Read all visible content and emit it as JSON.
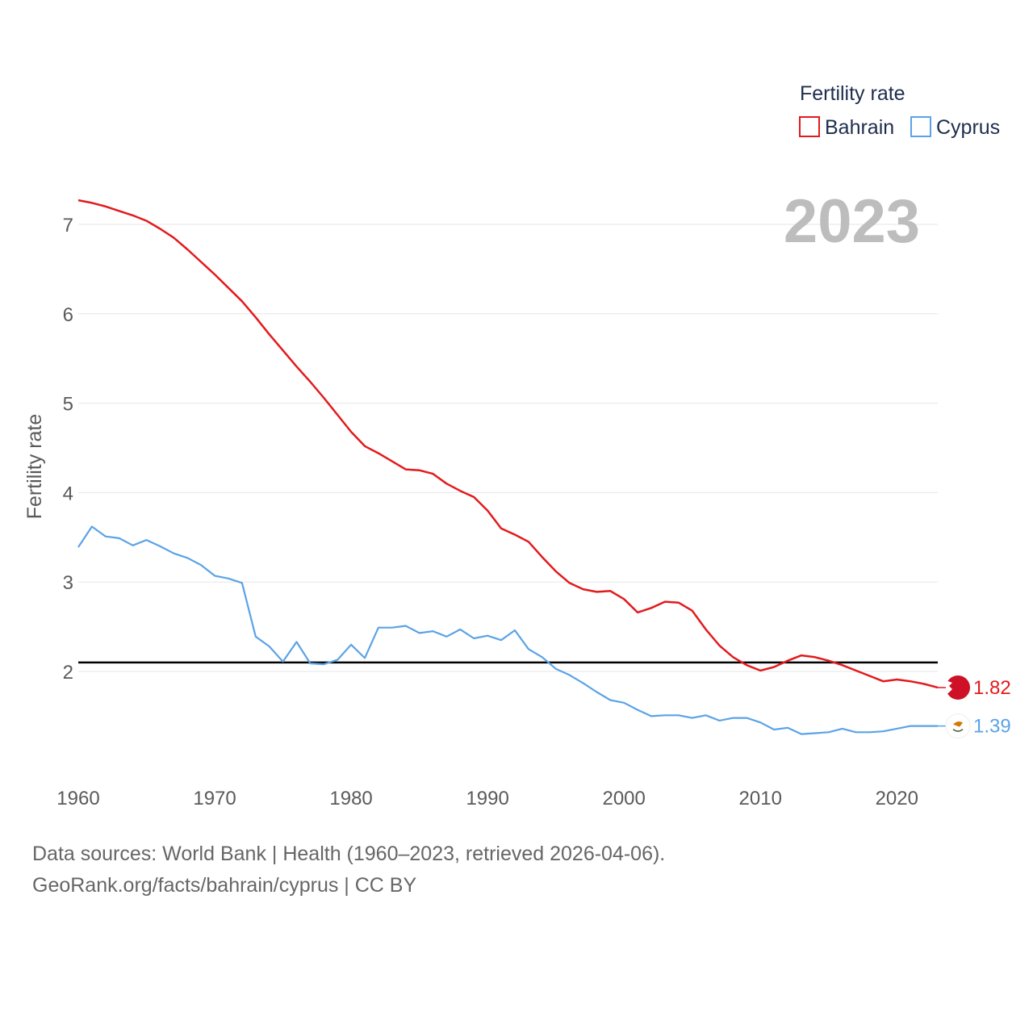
{
  "chart_data": {
    "type": "line",
    "title": "",
    "ylabel": "Fertility rate",
    "xlabel": "",
    "legend_title": "Fertility rate",
    "legend_position": "top-right",
    "current_year": "2023",
    "xlim": [
      1960,
      2023
    ],
    "ylim": [
      1,
      7.3
    ],
    "x_ticks": [
      1960,
      1970,
      1980,
      1990,
      2000,
      2010,
      2020
    ],
    "y_ticks": [
      2,
      3,
      4,
      5,
      6,
      7
    ],
    "reference_line": {
      "y": 2.1,
      "color": "#000000"
    },
    "x": [
      1960,
      1961,
      1962,
      1963,
      1964,
      1965,
      1966,
      1967,
      1968,
      1969,
      1970,
      1971,
      1972,
      1973,
      1974,
      1975,
      1976,
      1977,
      1978,
      1979,
      1980,
      1981,
      1982,
      1983,
      1984,
      1985,
      1986,
      1987,
      1988,
      1989,
      1990,
      1991,
      1992,
      1993,
      1994,
      1995,
      1996,
      1997,
      1998,
      1999,
      2000,
      2001,
      2002,
      2003,
      2004,
      2005,
      2006,
      2007,
      2008,
      2009,
      2010,
      2011,
      2012,
      2013,
      2014,
      2015,
      2016,
      2017,
      2018,
      2019,
      2020,
      2021,
      2022,
      2023
    ],
    "series": [
      {
        "name": "Bahrain",
        "color": "#e31a1c",
        "end_label": "1.82",
        "values": [
          7.27,
          7.24,
          7.2,
          7.15,
          7.1,
          7.04,
          6.95,
          6.85,
          6.72,
          6.58,
          6.44,
          6.29,
          6.14,
          5.96,
          5.77,
          5.59,
          5.41,
          5.24,
          5.06,
          4.87,
          4.68,
          4.52,
          4.44,
          4.35,
          4.26,
          4.25,
          4.21,
          4.1,
          4.02,
          3.95,
          3.8,
          3.6,
          3.53,
          3.45,
          3.28,
          3.12,
          2.99,
          2.92,
          2.89,
          2.9,
          2.81,
          2.66,
          2.71,
          2.78,
          2.77,
          2.68,
          2.47,
          2.29,
          2.16,
          2.07,
          2.01,
          2.05,
          2.12,
          2.18,
          2.16,
          2.12,
          2.07,
          2.01,
          1.95,
          1.89,
          1.91,
          1.89,
          1.86,
          1.82
        ]
      },
      {
        "name": "Cyprus",
        "color": "#5ba3e6",
        "end_label": "1.39",
        "values": [
          3.39,
          3.62,
          3.51,
          3.49,
          3.41,
          3.47,
          3.4,
          3.32,
          3.27,
          3.19,
          3.07,
          3.04,
          2.99,
          2.39,
          2.28,
          2.11,
          2.33,
          2.09,
          2.08,
          2.13,
          2.3,
          2.15,
          2.49,
          2.49,
          2.51,
          2.43,
          2.45,
          2.39,
          2.47,
          2.37,
          2.4,
          2.35,
          2.46,
          2.25,
          2.16,
          2.03,
          1.96,
          1.87,
          1.77,
          1.68,
          1.65,
          1.57,
          1.5,
          1.51,
          1.51,
          1.48,
          1.51,
          1.45,
          1.48,
          1.48,
          1.43,
          1.35,
          1.37,
          1.3,
          1.31,
          1.32,
          1.36,
          1.32,
          1.32,
          1.33,
          1.36,
          1.39,
          1.39,
          1.39
        ]
      }
    ]
  },
  "footer": {
    "source_line_1": "Data sources: World Bank | Health (1960–2023, retrieved 2026-04-06).",
    "source_line_2": "GeoRank.org/facts/bahrain/cyprus | CC BY"
  }
}
